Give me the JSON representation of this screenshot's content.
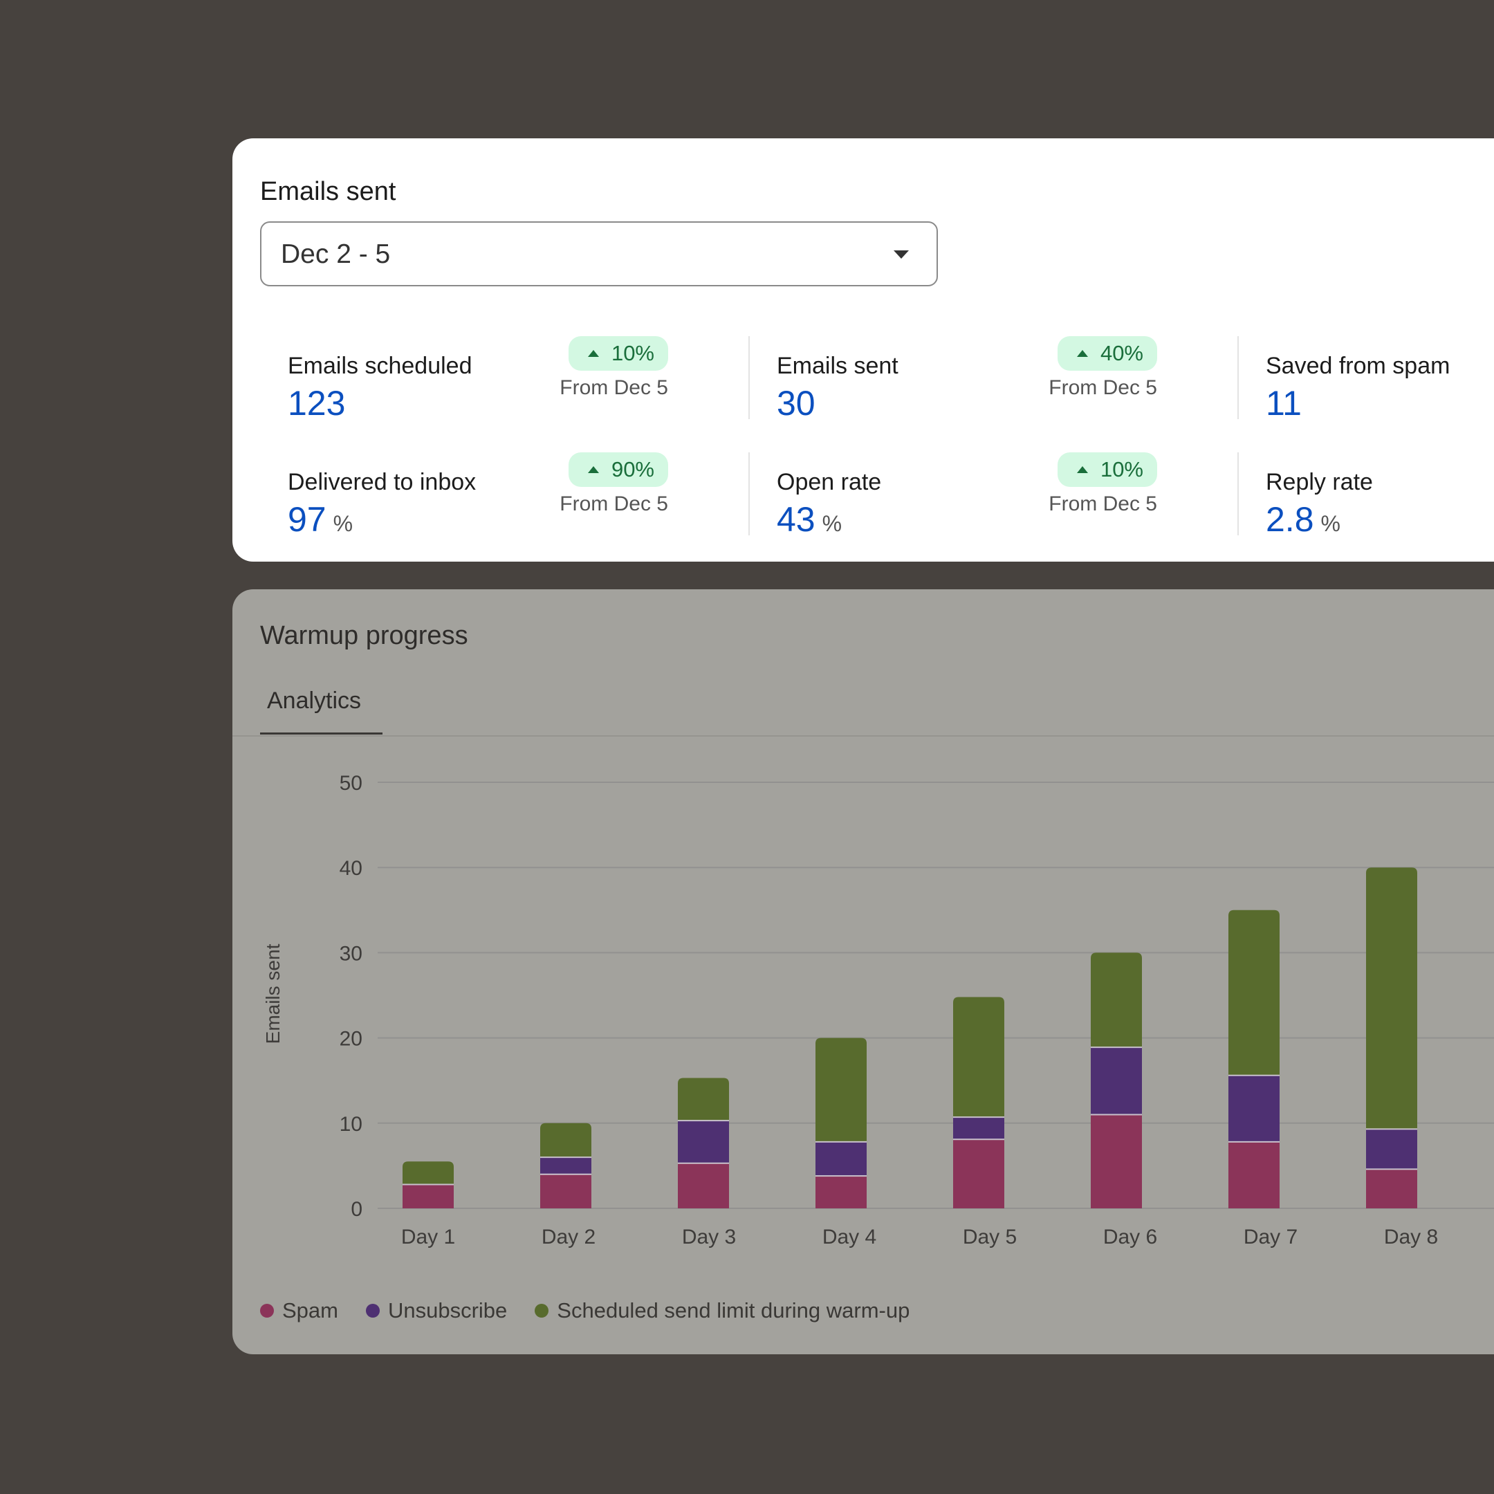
{
  "summary": {
    "title": "Emails sent",
    "date_range": "Dec 2 - 5",
    "stats": [
      {
        "label": "Emails scheduled",
        "value": "123",
        "unit": "",
        "change": "10%",
        "from": "From Dec 5"
      },
      {
        "label": "Emails sent",
        "value": "30",
        "unit": "",
        "change": "40%",
        "from": "From Dec 5"
      },
      {
        "label": "Saved from spam",
        "value": "11",
        "unit": ""
      },
      {
        "label": "Delivered to inbox",
        "value": "97",
        "unit": "%",
        "change": "90%",
        "from": "From Dec 5"
      },
      {
        "label": "Open rate",
        "value": "43",
        "unit": "%",
        "change": "10%",
        "from": "From Dec 5"
      },
      {
        "label": "Reply rate",
        "value": "2.8",
        "unit": "%"
      }
    ],
    "colors": {
      "value": "#0b4fbf",
      "badge_bg": "#d3f8e2",
      "badge_text": "#1a6e3b"
    }
  },
  "warmup": {
    "title": "Warmup progress",
    "tab": "Analytics"
  },
  "chart_data": {
    "type": "bar",
    "stacked": true,
    "ylabel": "Emails sent",
    "xlabel": "",
    "ylim": [
      0,
      50
    ],
    "yticks": [
      0,
      10,
      20,
      30,
      40,
      50
    ],
    "grid": true,
    "legend_placement": "bottom-left",
    "categories": [
      "Day 1",
      "Day 2",
      "Day 3",
      "Day 4",
      "Day 5",
      "Day 6",
      "Day 7",
      "Day 8"
    ],
    "series": [
      {
        "name": "Spam",
        "color": "#8b3459",
        "values": [
          2.8,
          4,
          5.3,
          3.8,
          8.1,
          11,
          7.8,
          4.6
        ]
      },
      {
        "name": "Unsubscribe",
        "color": "#4e3072",
        "values": [
          0,
          2,
          5,
          4,
          2.6,
          7.9,
          7.8,
          4.7
        ]
      },
      {
        "name": "Scheduled send limit during warm-up",
        "color": "#586b2d",
        "values": [
          2.7,
          4,
          5,
          12.2,
          14.1,
          11.1,
          19.4,
          30.7
        ]
      }
    ]
  }
}
